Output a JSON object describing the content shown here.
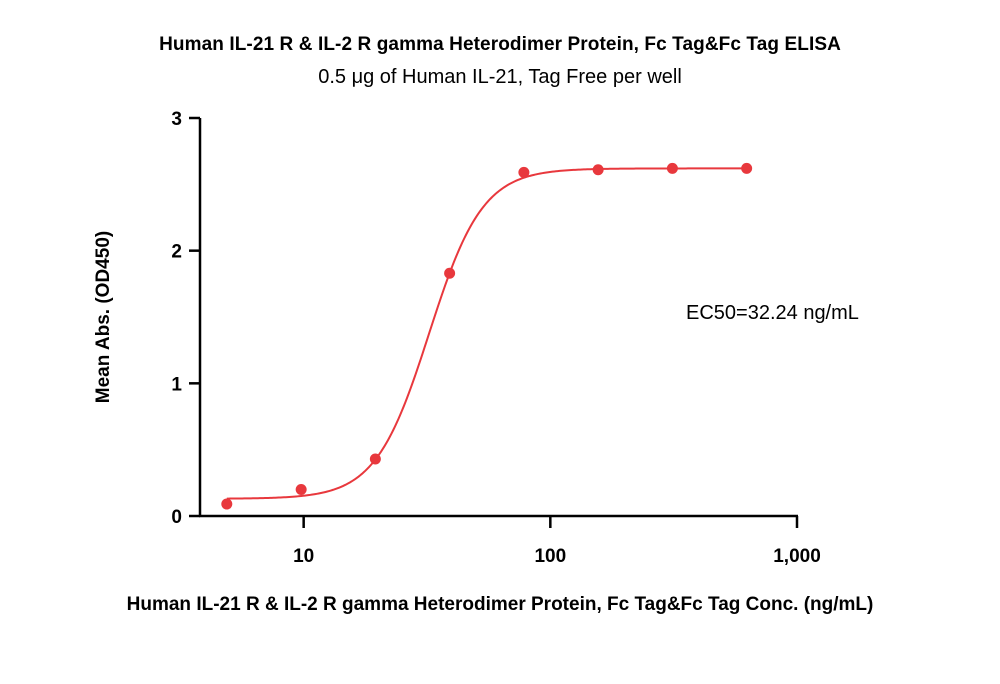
{
  "chart_data": {
    "type": "scatter",
    "title": "Human IL-21 R & IL-2 R gamma Heterodimer Protein, Fc Tag&Fc Tag ELISA",
    "subtitle": "0.5 μg of Human IL-21, Tag Free per well",
    "xlabel": "Human IL-21 R & IL-2 R gamma Heterodimer Protein, Fc Tag&Fc Tag Conc. (ng/mL)",
    "ylabel": "Mean Abs. (OD450)",
    "xscale": "log",
    "xlim": [
      3.8,
      1000
    ],
    "ylim": [
      0,
      3
    ],
    "xticks": [
      10,
      100,
      1000
    ],
    "xtick_labels": [
      "10",
      "100",
      "1,000"
    ],
    "yticks": [
      0,
      1,
      2,
      3
    ],
    "ytick_labels": [
      "0",
      "1",
      "2",
      "3"
    ],
    "grid": false,
    "color": "#e8383d",
    "series": [
      {
        "x": [
          4.88,
          9.77,
          19.53,
          39.06,
          78.13,
          156.25,
          312.5,
          625
        ],
        "y": [
          0.09,
          0.2,
          0.43,
          1.83,
          2.59,
          2.61,
          2.62,
          2.62
        ]
      }
    ],
    "fit": {
      "bottom": 0.13,
      "top": 2.62,
      "ec50": 32.24,
      "hill": 4.0
    },
    "annotation": "EC50=32.24 ng/mL"
  }
}
